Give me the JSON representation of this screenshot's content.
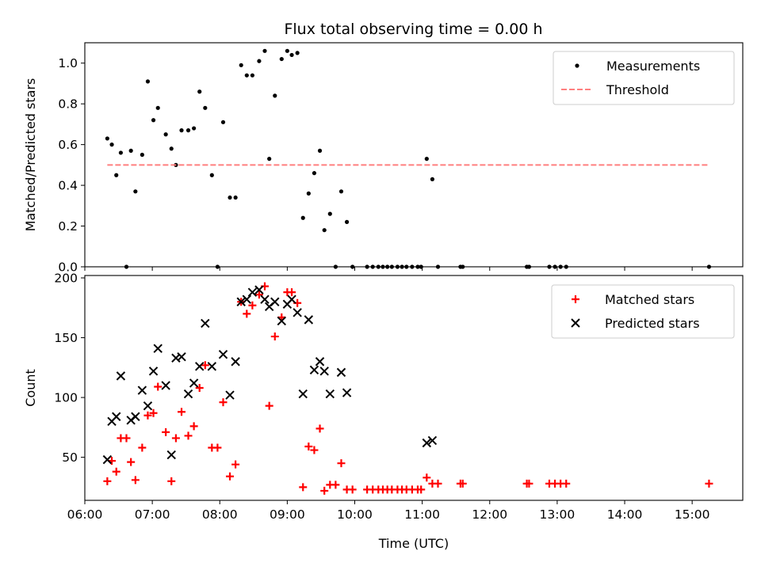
{
  "chart_data": [
    {
      "type": "scatter",
      "title": "Flux total observing time = 0.00 h",
      "xlabel": "",
      "ylabel": "Matched/Predicted stars",
      "xlim": [
        "06:00",
        "15:45"
      ],
      "ylim": [
        0,
        1.1
      ],
      "yticks": [
        "0.0",
        "0.2",
        "0.4",
        "0.6",
        "0.8",
        "1.0"
      ],
      "xticks": [
        "06:00",
        "07:00",
        "08:00",
        "09:00",
        "10:00",
        "11:00",
        "12:00",
        "13:00",
        "14:00",
        "15:00"
      ],
      "show_xtick_labels": false,
      "grid": false,
      "legend_position": "top-right",
      "series": [
        {
          "name": "Measurements",
          "marker": "dot",
          "color": "#000000",
          "points": [
            [
              "06:20",
              0.63
            ],
            [
              "06:24",
              0.6
            ],
            [
              "06:28",
              0.45
            ],
            [
              "06:32",
              0.56
            ],
            [
              "06:37",
              0.0
            ],
            [
              "06:41",
              0.57
            ],
            [
              "06:45",
              0.37
            ],
            [
              "06:51",
              0.55
            ],
            [
              "06:56",
              0.91
            ],
            [
              "07:01",
              0.72
            ],
            [
              "07:05",
              0.78
            ],
            [
              "07:12",
              0.65
            ],
            [
              "07:17",
              0.58
            ],
            [
              "07:21",
              0.5
            ],
            [
              "07:26",
              0.67
            ],
            [
              "07:32",
              0.67
            ],
            [
              "07:37",
              0.68
            ],
            [
              "07:42",
              0.86
            ],
            [
              "07:47",
              0.78
            ],
            [
              "07:53",
              0.45
            ],
            [
              "07:58",
              0.0
            ],
            [
              "08:03",
              0.71
            ],
            [
              "08:09",
              0.34
            ],
            [
              "08:14",
              0.34
            ],
            [
              "08:19",
              0.99
            ],
            [
              "08:24",
              0.94
            ],
            [
              "08:29",
              0.94
            ],
            [
              "08:35",
              1.01
            ],
            [
              "08:40",
              1.06
            ],
            [
              "08:44",
              0.53
            ],
            [
              "08:49",
              0.84
            ],
            [
              "08:55",
              1.02
            ],
            [
              "09:00",
              1.06
            ],
            [
              "09:04",
              1.04
            ],
            [
              "09:09",
              1.05
            ],
            [
              "09:14",
              0.24
            ],
            [
              "09:19",
              0.36
            ],
            [
              "09:24",
              0.46
            ],
            [
              "09:29",
              0.57
            ],
            [
              "09:33",
              0.18
            ],
            [
              "09:38",
              0.26
            ],
            [
              "09:43",
              0.0
            ],
            [
              "09:48",
              0.37
            ],
            [
              "09:53",
              0.22
            ],
            [
              "09:58",
              0.0
            ],
            [
              "10:11",
              0.0
            ],
            [
              "10:16",
              0.0
            ],
            [
              "10:21",
              0.0
            ],
            [
              "10:25",
              0.0
            ],
            [
              "10:29",
              0.0
            ],
            [
              "10:33",
              0.0
            ],
            [
              "10:38",
              0.0
            ],
            [
              "10:42",
              0.0
            ],
            [
              "10:46",
              0.0
            ],
            [
              "10:51",
              0.0
            ],
            [
              "10:56",
              0.0
            ],
            [
              "10:59",
              0.0
            ],
            [
              "11:04",
              0.53
            ],
            [
              "11:09",
              0.43
            ],
            [
              "11:14",
              0.0
            ],
            [
              "11:34",
              0.0
            ],
            [
              "11:36",
              0.0
            ],
            [
              "12:33",
              0.0
            ],
            [
              "12:35",
              0.0
            ],
            [
              "12:53",
              0.0
            ],
            [
              "12:58",
              0.0
            ],
            [
              "13:03",
              0.0
            ],
            [
              "13:08",
              0.0
            ],
            [
              "15:15",
              0.0
            ]
          ]
        },
        {
          "name": "Threshold",
          "marker": "dashed-line",
          "color": "#ff7f7f",
          "points": [
            [
              "06:20",
              0.5
            ],
            [
              "15:15",
              0.5
            ]
          ]
        }
      ]
    },
    {
      "type": "scatter",
      "title": "",
      "xlabel": "Time (UTC)",
      "ylabel": "Count",
      "xlim": [
        "06:00",
        "15:45"
      ],
      "ylim": [
        14,
        202
      ],
      "yticks": [
        "50",
        "100",
        "150",
        "200"
      ],
      "xticks": [
        "06:00",
        "07:00",
        "08:00",
        "09:00",
        "10:00",
        "11:00",
        "12:00",
        "13:00",
        "14:00",
        "15:00"
      ],
      "show_xtick_labels": true,
      "grid": false,
      "legend_position": "top-right",
      "series": [
        {
          "name": "Matched stars",
          "marker": "plus",
          "color": "#ff0000",
          "points": [
            [
              "06:20",
              30
            ],
            [
              "06:24",
              47
            ],
            [
              "06:28",
              38
            ],
            [
              "06:32",
              66
            ],
            [
              "06:37",
              66
            ],
            [
              "06:41",
              46
            ],
            [
              "06:45",
              31
            ],
            [
              "06:51",
              58
            ],
            [
              "06:56",
              85
            ],
            [
              "07:01",
              87
            ],
            [
              "07:05",
              109
            ],
            [
              "07:12",
              71
            ],
            [
              "07:17",
              30
            ],
            [
              "07:21",
              66
            ],
            [
              "07:26",
              88
            ],
            [
              "07:32",
              68
            ],
            [
              "07:37",
              76
            ],
            [
              "07:42",
              108
            ],
            [
              "07:47",
              127
            ],
            [
              "07:53",
              58
            ],
            [
              "07:58",
              58
            ],
            [
              "08:03",
              96
            ],
            [
              "08:09",
              34
            ],
            [
              "08:14",
              44
            ],
            [
              "08:19",
              180
            ],
            [
              "08:24",
              170
            ],
            [
              "08:29",
              177
            ],
            [
              "08:35",
              186
            ],
            [
              "08:40",
              193
            ],
            [
              "08:44",
              93
            ],
            [
              "08:49",
              151
            ],
            [
              "08:55",
              167
            ],
            [
              "09:00",
              188
            ],
            [
              "09:04",
              188
            ],
            [
              "09:09",
              179
            ],
            [
              "09:14",
              25
            ],
            [
              "09:19",
              59
            ],
            [
              "09:24",
              56
            ],
            [
              "09:29",
              74
            ],
            [
              "09:33",
              22
            ],
            [
              "09:38",
              27
            ],
            [
              "09:43",
              27
            ],
            [
              "09:48",
              45
            ],
            [
              "09:53",
              23
            ],
            [
              "09:58",
              23
            ],
            [
              "10:11",
              23
            ],
            [
              "10:16",
              23
            ],
            [
              "10:21",
              23
            ],
            [
              "10:25",
              23
            ],
            [
              "10:29",
              23
            ],
            [
              "10:33",
              23
            ],
            [
              "10:38",
              23
            ],
            [
              "10:42",
              23
            ],
            [
              "10:46",
              23
            ],
            [
              "10:51",
              23
            ],
            [
              "10:56",
              23
            ],
            [
              "10:59",
              23
            ],
            [
              "11:04",
              33
            ],
            [
              "11:09",
              28
            ],
            [
              "11:14",
              28
            ],
            [
              "11:34",
              28
            ],
            [
              "11:36",
              28
            ],
            [
              "12:33",
              28
            ],
            [
              "12:35",
              28
            ],
            [
              "12:53",
              28
            ],
            [
              "12:58",
              28
            ],
            [
              "13:03",
              28
            ],
            [
              "13:08",
              28
            ],
            [
              "15:15",
              28
            ]
          ]
        },
        {
          "name": "Predicted stars",
          "marker": "x",
          "color": "#000000",
          "points": [
            [
              "06:20",
              48
            ],
            [
              "06:24",
              80
            ],
            [
              "06:28",
              84
            ],
            [
              "06:32",
              118
            ],
            [
              "06:41",
              81
            ],
            [
              "06:45",
              84
            ],
            [
              "06:51",
              106
            ],
            [
              "06:56",
              93
            ],
            [
              "07:01",
              122
            ],
            [
              "07:05",
              141
            ],
            [
              "07:12",
              110
            ],
            [
              "07:17",
              52
            ],
            [
              "07:21",
              133
            ],
            [
              "07:26",
              134
            ],
            [
              "07:32",
              103
            ],
            [
              "07:37",
              112
            ],
            [
              "07:42",
              126
            ],
            [
              "07:47",
              162
            ],
            [
              "07:53",
              126
            ],
            [
              "08:03",
              136
            ],
            [
              "08:09",
              102
            ],
            [
              "08:14",
              130
            ],
            [
              "08:19",
              180
            ],
            [
              "08:24",
              182
            ],
            [
              "08:29",
              188
            ],
            [
              "08:35",
              190
            ],
            [
              "08:40",
              182
            ],
            [
              "08:44",
              176
            ],
            [
              "08:49",
              180
            ],
            [
              "08:55",
              164
            ],
            [
              "09:00",
              178
            ],
            [
              "09:04",
              182
            ],
            [
              "09:09",
              171
            ],
            [
              "09:14",
              103
            ],
            [
              "09:19",
              165
            ],
            [
              "09:24",
              123
            ],
            [
              "09:29",
              130
            ],
            [
              "09:33",
              122
            ],
            [
              "09:38",
              103
            ],
            [
              "09:48",
              121
            ],
            [
              "09:53",
              104
            ],
            [
              "11:04",
              62
            ],
            [
              "11:09",
              64
            ]
          ]
        }
      ]
    }
  ]
}
